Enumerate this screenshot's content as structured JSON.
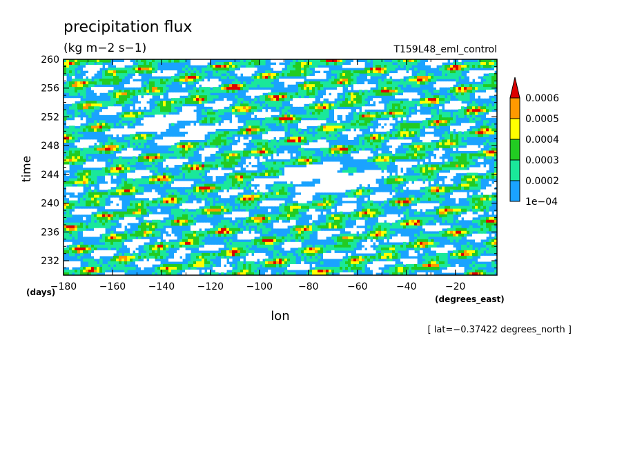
{
  "chart_data": {
    "type": "heatmap",
    "title": "precipitation flux",
    "units": "(kg m−2 s−1)",
    "run_label": "T159L48_eml_control",
    "xlabel": "lon",
    "xunits": "(degrees_east)",
    "ylabel": "time",
    "yunits": "(days)",
    "footnote": "[ lat=−0.37422 degrees_north ]",
    "xlim": [
      -180,
      -3
    ],
    "ylim": [
      230,
      260
    ],
    "x_ticks": [
      -180,
      -160,
      -140,
      -120,
      -100,
      -80,
      -60,
      -40,
      -20
    ],
    "x_tick_labels": [
      "−180",
      "−160",
      "−140",
      "−120",
      "−100",
      "−80",
      "−60",
      "−40",
      "−20"
    ],
    "y_ticks": [
      232,
      236,
      240,
      244,
      248,
      252,
      256,
      260
    ],
    "y_tick_labels": [
      "232",
      "236",
      "240",
      "244",
      "248",
      "252",
      "256",
      "260"
    ],
    "colorbar": {
      "levels": [
        0.0001,
        0.0002,
        0.0003,
        0.0004,
        0.0005,
        0.0006
      ],
      "level_labels": [
        "1e−04",
        "0.0002",
        "0.0003",
        "0.0004",
        "0.0005",
        "0.0006"
      ],
      "colors": [
        "#1aa3ff",
        "#1ae89a",
        "#22cc22",
        "#ffff00",
        "#ff9900",
        "#dd0000"
      ],
      "below_color": "#ffffff",
      "extend": "max"
    }
  }
}
